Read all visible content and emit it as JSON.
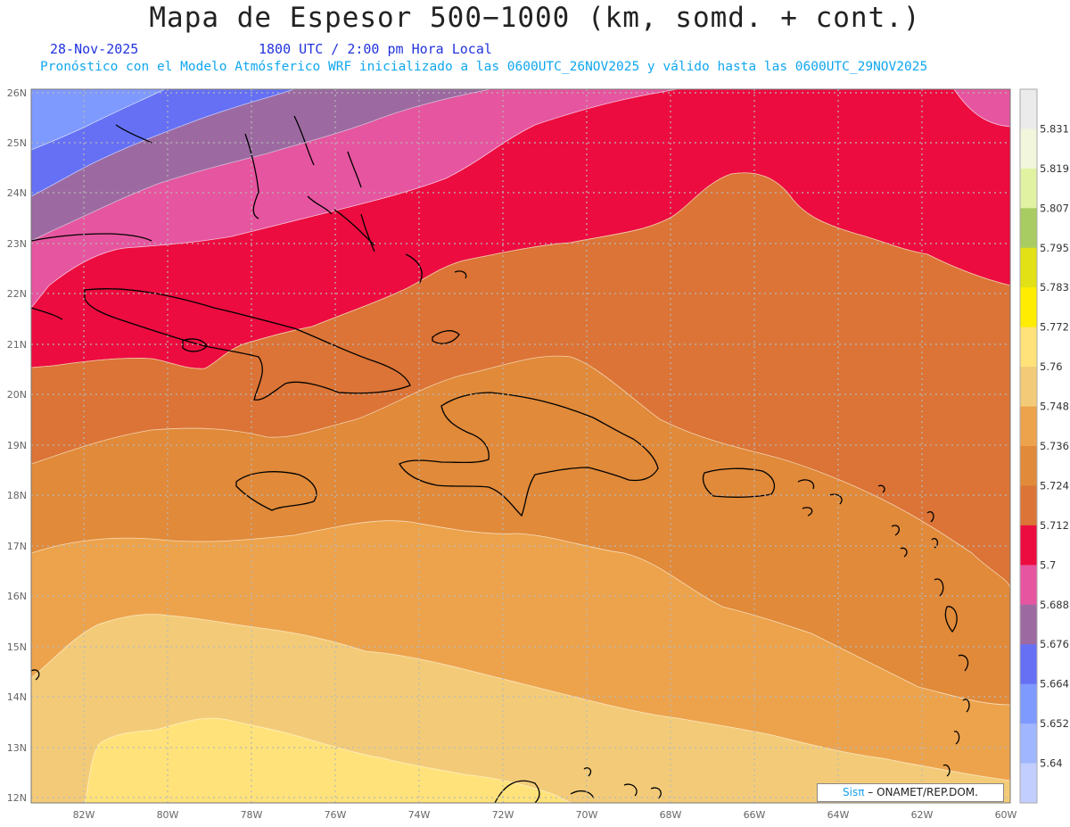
{
  "title": "Mapa de Espesor 500−1000 (km, somd. + cont.)",
  "date": "28-Nov-2025",
  "time": "1800 UTC / 2:00 pm Hora Local",
  "note": "Pronóstico con el Modelo Atmósferico WRF inicializado a las 0600UTC_26NOV2025 y válido hasta las  0600UTC_29NOV2025",
  "credit": {
    "brand": "Sisπ",
    "org": "– ONAMET/REP.DOM."
  },
  "map": {
    "lat_labels": [
      "26N",
      "25N",
      "24N",
      "23N",
      "22N",
      "21N",
      "20N",
      "19N",
      "18N",
      "17N",
      "16N",
      "15N",
      "14N",
      "13N",
      "12N"
    ],
    "lon_labels": [
      "82W",
      "80W",
      "78W",
      "76W",
      "74W",
      "72W",
      "70W",
      "68W",
      "66W",
      "64W",
      "62W",
      "60W"
    ],
    "land": [
      {
        "name": "Cuba"
      },
      {
        "name": "Jamaica"
      },
      {
        "name": "Hispaniola"
      },
      {
        "name": "Puerto Rico"
      },
      {
        "name": "Bahamas"
      },
      {
        "name": "Lesser Antilles"
      },
      {
        "name": "South America"
      }
    ]
  },
  "colorbar": {
    "labels": [
      "5.831",
      "5.819",
      "5.807",
      "5.795",
      "5.783",
      "5.772",
      "5.76",
      "5.748",
      "5.736",
      "5.724",
      "5.712",
      "5.7",
      "5.688",
      "5.676",
      "5.664",
      "5.652",
      "5.64"
    ],
    "colors": [
      "#ebebeb",
      "#f1f6dc",
      "#e1f2a2",
      "#a9cc62",
      "#e2e116",
      "#ffec00",
      "#ffe27a",
      "#f3cb78",
      "#eca34c",
      "#e08a3a",
      "#db7436",
      "#ec0c3f",
      "#e6559f",
      "#9c6aa1",
      "#6570f4",
      "#7f9aff",
      "#a0b7ff",
      "#c1ceff"
    ],
    "colors_note": "top to bottom"
  },
  "palette": {
    "bg_sea": "#e08a3a",
    "band_5700": "#ec0c3f",
    "band_5688": "#e6559f",
    "band_5676": "#9c6aa1",
    "band_5664": "#6570f4",
    "band_5652": "#7f9aff",
    "band_5712": "#db7436",
    "band_5736": "#eca34c",
    "band_5748": "#f3cb78",
    "band_5760": "#ffe27a"
  }
}
